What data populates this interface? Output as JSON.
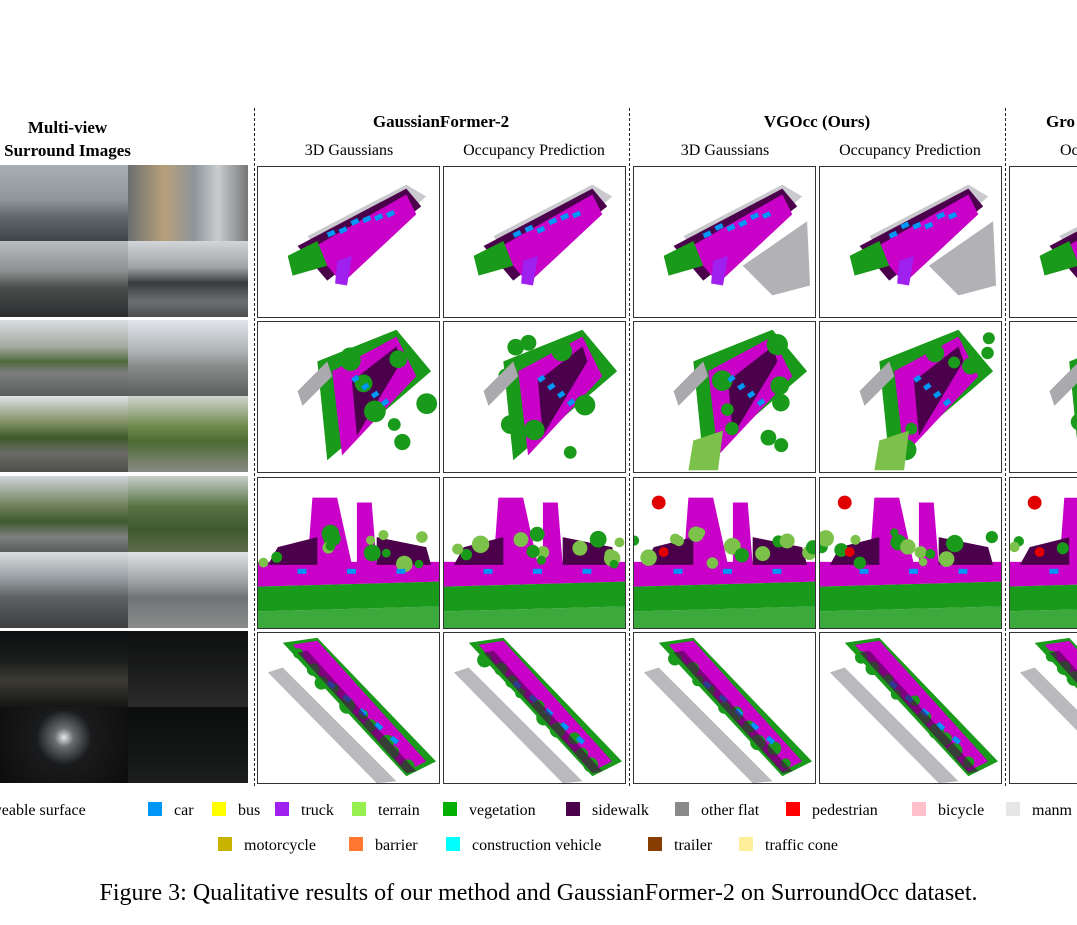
{
  "headers": {
    "multiview_line1": "Multi-view",
    "multiview_line2": "Surround Images",
    "gf2": "GaussianFormer-2",
    "vgocc": "VGOcc (Ours)",
    "gt_partial": "Gro"
  },
  "subheaders": {
    "gf2_gauss": "3D Gaussians",
    "gf2_occ": "Occupancy Prediction",
    "vg_gauss": "3D Gaussians",
    "vg_occ": "Occupancy Prediction",
    "gt_partial": "Oc"
  },
  "legend": [
    {
      "label": "driveable surface",
      "color": "#c800c8"
    },
    {
      "label": "car",
      "color": "#0096f5"
    },
    {
      "label": "bus",
      "color": "#ffff00"
    },
    {
      "label": "truck",
      "color": "#a020f0"
    },
    {
      "label": "terrain",
      "color": "#96f050"
    },
    {
      "label": "vegetation",
      "color": "#00af00"
    },
    {
      "label": "sidewalk",
      "color": "#4b004b"
    },
    {
      "label": "other flat",
      "color": "#8a8a8a"
    },
    {
      "label": "pedestrian",
      "color": "#ff0000"
    },
    {
      "label": "bicycle",
      "color": "#ffc0cb"
    },
    {
      "label": "manm",
      "color": "#e6e6e6"
    },
    {
      "label": "motorcycle",
      "color": "#c8b400"
    },
    {
      "label": "barrier",
      "color": "#ff7832"
    },
    {
      "label": "construction vehicle",
      "color": "#00ffff"
    },
    {
      "label": "trailer",
      "color": "#873c00"
    },
    {
      "label": "traffic cone",
      "color": "#ffee99"
    }
  ],
  "caption": "Figure 3: Qualitative results of our method and GaussianFormer-2 on SurroundOcc dataset."
}
